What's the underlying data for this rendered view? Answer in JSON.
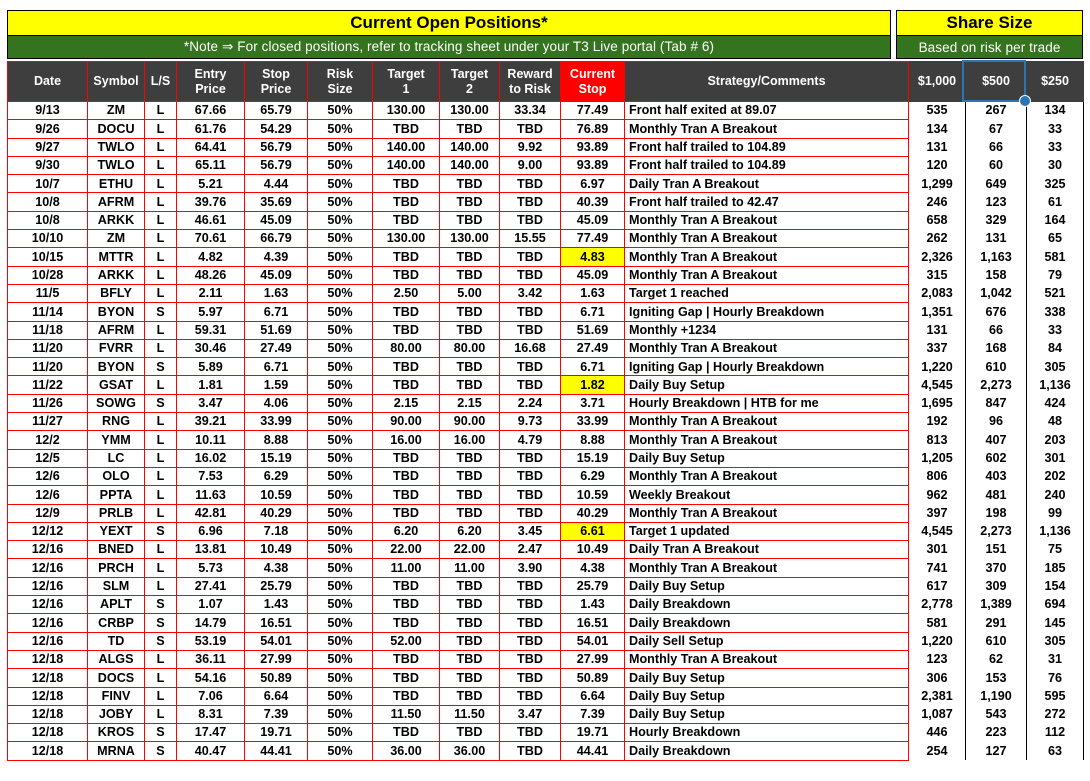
{
  "header": {
    "title": "Current Open Positions*",
    "share_title": "Share Size"
  },
  "note": {
    "text": "*Note ⇒ For closed positions, refer to tracking sheet under your T3 Live portal (Tab # 6)",
    "share_text": "Based on risk per trade"
  },
  "colors": {
    "title_yellow": "#FFFF00",
    "note_green": "#35741F",
    "header_gray": "#3E3E3E",
    "grid_red": "#FF0000",
    "current_stop_red": "#FF0000",
    "highlight_yellow": "#FFFF00",
    "selection_blue": "#2E75B6"
  },
  "selection": {
    "selected_column": "$500"
  },
  "table": {
    "columns": [
      {
        "key": "date",
        "label": "Date"
      },
      {
        "key": "symbol",
        "label": "Symbol"
      },
      {
        "key": "ls",
        "label": "L/S"
      },
      {
        "key": "entry",
        "label": "Entry\nPrice"
      },
      {
        "key": "stop",
        "label": "Stop\nPrice"
      },
      {
        "key": "risk",
        "label": "Risk\nSize"
      },
      {
        "key": "target1",
        "label": "Target\n1"
      },
      {
        "key": "target2",
        "label": "Target\n2"
      },
      {
        "key": "reward",
        "label": "Reward\nto Risk"
      },
      {
        "key": "current_stop",
        "label": "Current\nStop"
      },
      {
        "key": "strategy",
        "label": "Strategy/Comments"
      },
      {
        "key": "size_1000",
        "label": "$1,000"
      },
      {
        "key": "size_500",
        "label": "$500"
      },
      {
        "key": "size_250",
        "label": "$250"
      }
    ],
    "rows": [
      {
        "date": "9/13",
        "symbol": "ZM",
        "ls": "L",
        "entry": "67.66",
        "stop": "65.79",
        "risk": "50%",
        "target1": "130.00",
        "target2": "130.00",
        "reward": "33.34",
        "current_stop": "77.49",
        "strategy": "Front half exited at 89.07",
        "size_1000": "535",
        "size_500": "267",
        "size_250": "134"
      },
      {
        "date": "9/26",
        "symbol": "DOCU",
        "ls": "L",
        "entry": "61.76",
        "stop": "54.29",
        "risk": "50%",
        "target1": "TBD",
        "target2": "TBD",
        "reward": "TBD",
        "current_stop": "76.89",
        "strategy": "Monthly Tran A Breakout",
        "size_1000": "134",
        "size_500": "67",
        "size_250": "33"
      },
      {
        "date": "9/27",
        "symbol": "TWLO",
        "ls": "L",
        "entry": "64.41",
        "stop": "56.79",
        "risk": "50%",
        "target1": "140.00",
        "target2": "140.00",
        "reward": "9.92",
        "current_stop": "93.89",
        "strategy": "Front half  trailed to 104.89",
        "size_1000": "131",
        "size_500": "66",
        "size_250": "33"
      },
      {
        "date": "9/30",
        "symbol": "TWLO",
        "ls": "L",
        "entry": "65.11",
        "stop": "56.79",
        "risk": "50%",
        "target1": "140.00",
        "target2": "140.00",
        "reward": "9.00",
        "current_stop": "93.89",
        "strategy": "Front half  trailed to 104.89",
        "size_1000": "120",
        "size_500": "60",
        "size_250": "30"
      },
      {
        "date": "10/7",
        "symbol": "ETHU",
        "ls": "L",
        "entry": "5.21",
        "stop": "4.44",
        "risk": "50%",
        "target1": "TBD",
        "target2": "TBD",
        "reward": "TBD",
        "current_stop": "6.97",
        "strategy": "Daily Tran A Breakout",
        "size_1000": "1,299",
        "size_500": "649",
        "size_250": "325"
      },
      {
        "date": "10/8",
        "symbol": "AFRM",
        "ls": "L",
        "entry": "39.76",
        "stop": "35.69",
        "risk": "50%",
        "target1": "TBD",
        "target2": "TBD",
        "reward": "TBD",
        "current_stop": "40.39",
        "strategy": "Front half trailed to 42.47",
        "size_1000": "246",
        "size_500": "123",
        "size_250": "61"
      },
      {
        "date": "10/8",
        "symbol": "ARKK",
        "ls": "L",
        "entry": "46.61",
        "stop": "45.09",
        "risk": "50%",
        "target1": "TBD",
        "target2": "TBD",
        "reward": "TBD",
        "current_stop": "45.09",
        "strategy": "Monthly Tran A Breakout",
        "size_1000": "658",
        "size_500": "329",
        "size_250": "164"
      },
      {
        "date": "10/10",
        "symbol": "ZM",
        "ls": "L",
        "entry": "70.61",
        "stop": "66.79",
        "risk": "50%",
        "target1": "130.00",
        "target2": "130.00",
        "reward": "15.55",
        "current_stop": "77.49",
        "strategy": "Monthly Tran A Breakout",
        "size_1000": "262",
        "size_500": "131",
        "size_250": "65"
      },
      {
        "date": "10/15",
        "symbol": "MTTR",
        "ls": "L",
        "entry": "4.82",
        "stop": "4.39",
        "risk": "50%",
        "target1": "TBD",
        "target2": "TBD",
        "reward": "TBD",
        "current_stop": "4.83",
        "stop_highlight": true,
        "strategy": "Monthly Tran A Breakout",
        "size_1000": "2,326",
        "size_500": "1,163",
        "size_250": "581"
      },
      {
        "date": "10/28",
        "symbol": "ARKK",
        "ls": "L",
        "entry": "48.26",
        "stop": "45.09",
        "risk": "50%",
        "target1": "TBD",
        "target2": "TBD",
        "reward": "TBD",
        "current_stop": "45.09",
        "strategy": "Monthly Tran A Breakout",
        "size_1000": "315",
        "size_500": "158",
        "size_250": "79"
      },
      {
        "date": "11/5",
        "symbol": "BFLY",
        "ls": "L",
        "entry": "2.11",
        "stop": "1.63",
        "risk": "50%",
        "target1": "2.50",
        "target2": "5.00",
        "reward": "3.42",
        "current_stop": "1.63",
        "strategy": "Target 1 reached",
        "size_1000": "2,083",
        "size_500": "1,042",
        "size_250": "521"
      },
      {
        "date": "11/14",
        "symbol": "BYON",
        "ls": "S",
        "entry": "5.97",
        "stop": "6.71",
        "risk": "50%",
        "target1": "TBD",
        "target2": "TBD",
        "reward": "TBD",
        "current_stop": "6.71",
        "strategy": "Igniting Gap | Hourly Breakdown",
        "size_1000": "1,351",
        "size_500": "676",
        "size_250": "338"
      },
      {
        "date": "11/18",
        "symbol": "AFRM",
        "ls": "L",
        "entry": "59.31",
        "stop": "51.69",
        "risk": "50%",
        "target1": "TBD",
        "target2": "TBD",
        "reward": "TBD",
        "current_stop": "51.69",
        "strategy": "Monthly +1234",
        "size_1000": "131",
        "size_500": "66",
        "size_250": "33"
      },
      {
        "date": "11/20",
        "symbol": "FVRR",
        "ls": "L",
        "entry": "30.46",
        "stop": "27.49",
        "risk": "50%",
        "target1": "80.00",
        "target2": "80.00",
        "reward": "16.68",
        "current_stop": "27.49",
        "strategy": "Monthly Tran A Breakout",
        "size_1000": "337",
        "size_500": "168",
        "size_250": "84"
      },
      {
        "date": "11/20",
        "symbol": "BYON",
        "ls": "S",
        "entry": "5.89",
        "stop": "6.71",
        "risk": "50%",
        "target1": "TBD",
        "target2": "TBD",
        "reward": "TBD",
        "current_stop": "6.71",
        "strategy": "Igniting Gap | Hourly Breakdown",
        "size_1000": "1,220",
        "size_500": "610",
        "size_250": "305"
      },
      {
        "date": "11/22",
        "symbol": "GSAT",
        "ls": "L",
        "entry": "1.81",
        "stop": "1.59",
        "risk": "50%",
        "target1": "TBD",
        "target2": "TBD",
        "reward": "TBD",
        "current_stop": "1.82",
        "stop_highlight": true,
        "strategy": "Daily Buy Setup",
        "size_1000": "4,545",
        "size_500": "2,273",
        "size_250": "1,136"
      },
      {
        "date": "11/26",
        "symbol": "SOWG",
        "ls": "S",
        "entry": "3.47",
        "stop": "4.06",
        "risk": "50%",
        "target1": "2.15",
        "target2": "2.15",
        "reward": "2.24",
        "current_stop": "3.71",
        "strategy": "Hourly Breakdown | HTB for me",
        "size_1000": "1,695",
        "size_500": "847",
        "size_250": "424"
      },
      {
        "date": "11/27",
        "symbol": "RNG",
        "ls": "L",
        "entry": "39.21",
        "stop": "33.99",
        "risk": "50%",
        "target1": "90.00",
        "target2": "90.00",
        "reward": "9.73",
        "current_stop": "33.99",
        "strategy": "Monthly Tran A Breakout",
        "size_1000": "192",
        "size_500": "96",
        "size_250": "48"
      },
      {
        "date": "12/2",
        "symbol": "YMM",
        "ls": "L",
        "entry": "10.11",
        "stop": "8.88",
        "risk": "50%",
        "target1": "16.00",
        "target2": "16.00",
        "reward": "4.79",
        "current_stop": "8.88",
        "strategy": "Monthly Tran A Breakout",
        "size_1000": "813",
        "size_500": "407",
        "size_250": "203"
      },
      {
        "date": "12/5",
        "symbol": "LC",
        "ls": "L",
        "entry": "16.02",
        "stop": "15.19",
        "risk": "50%",
        "target1": "TBD",
        "target2": "TBD",
        "reward": "TBD",
        "current_stop": "15.19",
        "strategy": "Daily Buy Setup",
        "size_1000": "1,205",
        "size_500": "602",
        "size_250": "301"
      },
      {
        "date": "12/6",
        "symbol": "OLO",
        "ls": "L",
        "entry": "7.53",
        "stop": "6.29",
        "risk": "50%",
        "target1": "TBD",
        "target2": "TBD",
        "reward": "TBD",
        "current_stop": "6.29",
        "strategy": "Monthly Tran A Breakout",
        "size_1000": "806",
        "size_500": "403",
        "size_250": "202"
      },
      {
        "date": "12/6",
        "symbol": "PPTA",
        "ls": "L",
        "entry": "11.63",
        "stop": "10.59",
        "risk": "50%",
        "target1": "TBD",
        "target2": "TBD",
        "reward": "TBD",
        "current_stop": "10.59",
        "strategy": "Weekly Breakout",
        "size_1000": "962",
        "size_500": "481",
        "size_250": "240"
      },
      {
        "date": "12/9",
        "symbol": "PRLB",
        "ls": "L",
        "entry": "42.81",
        "stop": "40.29",
        "risk": "50%",
        "target1": "TBD",
        "target2": "TBD",
        "reward": "TBD",
        "current_stop": "40.29",
        "strategy": "Monthly Tran A Breakout",
        "size_1000": "397",
        "size_500": "198",
        "size_250": "99"
      },
      {
        "date": "12/12",
        "symbol": "YEXT",
        "ls": "S",
        "entry": "6.96",
        "stop": "7.18",
        "risk": "50%",
        "target1": "6.20",
        "target2": "6.20",
        "reward": "3.45",
        "current_stop": "6.61",
        "stop_highlight": true,
        "strategy": "Target 1 updated",
        "size_1000": "4,545",
        "size_500": "2,273",
        "size_250": "1,136"
      },
      {
        "date": "12/16",
        "symbol": "BNED",
        "ls": "L",
        "entry": "13.81",
        "stop": "10.49",
        "risk": "50%",
        "target1": "22.00",
        "target2": "22.00",
        "reward": "2.47",
        "current_stop": "10.49",
        "strategy": "Daily Tran A Breakout",
        "size_1000": "301",
        "size_500": "151",
        "size_250": "75"
      },
      {
        "date": "12/16",
        "symbol": "PRCH",
        "ls": "L",
        "entry": "5.73",
        "stop": "4.38",
        "risk": "50%",
        "target1": "11.00",
        "target2": "11.00",
        "reward": "3.90",
        "current_stop": "4.38",
        "strategy": "Monthly Tran A Breakout",
        "size_1000": "741",
        "size_500": "370",
        "size_250": "185"
      },
      {
        "date": "12/16",
        "symbol": "SLM",
        "ls": "L",
        "entry": "27.41",
        "stop": "25.79",
        "risk": "50%",
        "target1": "TBD",
        "target2": "TBD",
        "reward": "TBD",
        "current_stop": "25.79",
        "strategy": "Daily Buy Setup",
        "size_1000": "617",
        "size_500": "309",
        "size_250": "154"
      },
      {
        "date": "12/16",
        "symbol": "APLT",
        "ls": "S",
        "entry": "1.07",
        "stop": "1.43",
        "risk": "50%",
        "target1": "TBD",
        "target2": "TBD",
        "reward": "TBD",
        "current_stop": "1.43",
        "strategy": "Daily Breakdown",
        "size_1000": "2,778",
        "size_500": "1,389",
        "size_250": "694"
      },
      {
        "date": "12/16",
        "symbol": "CRBP",
        "ls": "S",
        "entry": "14.79",
        "stop": "16.51",
        "risk": "50%",
        "target1": "TBD",
        "target2": "TBD",
        "reward": "TBD",
        "current_stop": "16.51",
        "strategy": "Daily Breakdown",
        "size_1000": "581",
        "size_500": "291",
        "size_250": "145"
      },
      {
        "date": "12/16",
        "symbol": "TD",
        "ls": "S",
        "entry": "53.19",
        "stop": "54.01",
        "risk": "50%",
        "target1": "52.00",
        "target2": "TBD",
        "reward": "TBD",
        "current_stop": "54.01",
        "strategy": "Daily Sell Setup",
        "size_1000": "1,220",
        "size_500": "610",
        "size_250": "305"
      },
      {
        "date": "12/18",
        "symbol": "ALGS",
        "ls": "L",
        "entry": "36.11",
        "stop": "27.99",
        "risk": "50%",
        "target1": "TBD",
        "target2": "TBD",
        "reward": "TBD",
        "current_stop": "27.99",
        "strategy": "Monthly Tran A Breakout",
        "size_1000": "123",
        "size_500": "62",
        "size_250": "31"
      },
      {
        "date": "12/18",
        "symbol": "DOCS",
        "ls": "L",
        "entry": "54.16",
        "stop": "50.89",
        "risk": "50%",
        "target1": "TBD",
        "target2": "TBD",
        "reward": "TBD",
        "current_stop": "50.89",
        "strategy": "Daily Buy Setup",
        "size_1000": "306",
        "size_500": "153",
        "size_250": "76"
      },
      {
        "date": "12/18",
        "symbol": "FINV",
        "ls": "L",
        "entry": "7.06",
        "stop": "6.64",
        "risk": "50%",
        "target1": "TBD",
        "target2": "TBD",
        "reward": "TBD",
        "current_stop": "6.64",
        "strategy": "Daily Buy Setup",
        "size_1000": "2,381",
        "size_500": "1,190",
        "size_250": "595"
      },
      {
        "date": "12/18",
        "symbol": "JOBY",
        "ls": "L",
        "entry": "8.31",
        "stop": "7.39",
        "risk": "50%",
        "target1": "11.50",
        "target2": "11.50",
        "reward": "3.47",
        "current_stop": "7.39",
        "strategy": "Daily Buy Setup",
        "size_1000": "1,087",
        "size_500": "543",
        "size_250": "272"
      },
      {
        "date": "12/18",
        "symbol": "KROS",
        "ls": "S",
        "entry": "17.47",
        "stop": "19.71",
        "risk": "50%",
        "target1": "TBD",
        "target2": "TBD",
        "reward": "TBD",
        "current_stop": "19.71",
        "strategy": "Hourly Breakdown",
        "size_1000": "446",
        "size_500": "223",
        "size_250": "112"
      },
      {
        "date": "12/18",
        "symbol": "MRNA",
        "ls": "S",
        "entry": "40.47",
        "stop": "44.41",
        "risk": "50%",
        "target1": "36.00",
        "target2": "36.00",
        "reward": "TBD",
        "current_stop": "44.41",
        "strategy": "Daily Breakdown",
        "size_1000": "254",
        "size_500": "127",
        "size_250": "63"
      }
    ]
  }
}
